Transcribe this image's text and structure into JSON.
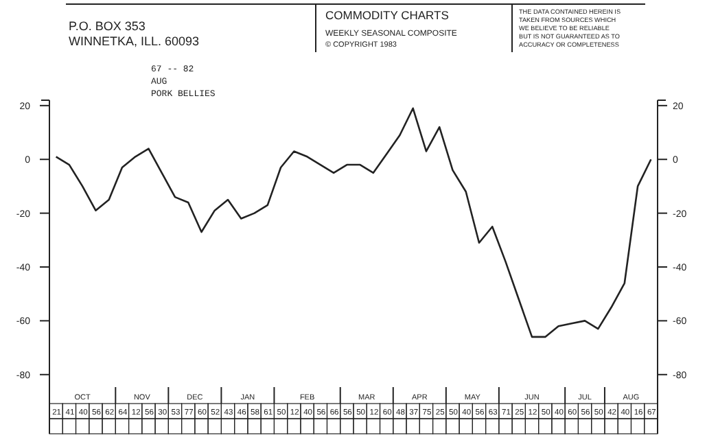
{
  "chart_data": {
    "type": "line",
    "title": "COMMODITY CHARTS",
    "subtitle": "WEEKLY SEASONAL COMPOSITE",
    "categories": [
      null,
      null,
      null,
      null,
      null,
      null,
      null,
      null,
      null,
      null,
      null,
      null,
      null,
      null,
      null,
      null,
      null,
      null,
      null,
      null,
      null,
      null,
      null,
      null,
      null,
      null,
      null,
      null,
      null,
      null,
      null,
      null,
      null,
      null,
      null,
      null,
      null,
      null,
      null,
      null,
      null,
      null,
      null,
      null,
      null,
      null
    ],
    "series": [
      {
        "color": "#222222",
        "values": [
          1,
          -2,
          -10,
          -19,
          -15,
          -3,
          1,
          4,
          -5,
          -14,
          -16,
          -27,
          -19,
          -15,
          -22,
          -20,
          -17,
          -3,
          3,
          1,
          -2,
          -5,
          -2,
          -2,
          -5,
          2,
          9,
          19,
          3,
          12,
          -4,
          -12,
          -31,
          -25,
          -38,
          -52,
          -66,
          -66,
          -62,
          -61,
          -60,
          -63,
          -55,
          -46,
          -10,
          0
        ]
      }
    ],
    "ylim": [
      -102,
      22
    ],
    "yticks": [
      20,
      0,
      -20,
      -40,
      -60,
      -80
    ],
    "y2lim": [
      -102,
      22
    ],
    "y2ticks": [
      20,
      0,
      -20,
      -40,
      -60,
      -80
    ],
    "marker": "none",
    "line_style": "solid",
    "annotations": [
      "P.O. BOX 353",
      "WINNETKA, ILL. 60093",
      "© COPYRIGHT 1983",
      "THE DATA CONTAINED HEREIN IS",
      "TAKEN FROM SOURCES WHICH",
      "WE BELIEVE TO BE RELIABLE",
      "BUT IS NOT GUARANTEED AS TO",
      "ACCURACY OR COMPLETENESS",
      "67 -- 82",
      "AUG",
      "PORK BELLIES",
      "OCT",
      "NOV",
      "DEC",
      "JAN",
      "FEB",
      "MAR",
      "APR",
      "MAY",
      "JUN",
      "JUL",
      "AUG",
      "21",
      "41",
      "40",
      "56",
      "62",
      "64",
      "12",
      "56",
      "30",
      "53",
      "77",
      "60",
      "52",
      "43",
      "46",
      "58",
      "61",
      "50",
      "12",
      "40",
      "56",
      "66",
      "56",
      "50",
      "12",
      "60",
      "48",
      "37",
      "75",
      "25",
      "50",
      "40",
      "56",
      "63",
      "71",
      "25",
      "12",
      "50",
      "40",
      "60",
      "56",
      "50",
      "42",
      "40",
      "16",
      "67"
    ]
  }
}
